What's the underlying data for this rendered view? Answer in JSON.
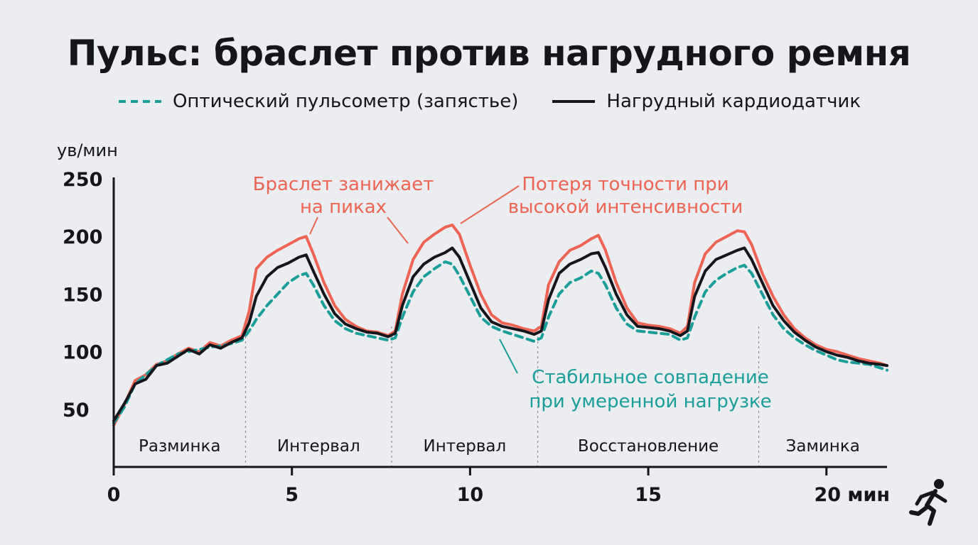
{
  "title": "Пульс: браслет против нагрудного ремня",
  "legend": [
    {
      "label": "Оптический пульсометр (запястье)",
      "style": "dashed",
      "color": "#1a9e9a"
    },
    {
      "label": "Нагрудный кардиодатчик",
      "style": "solid",
      "color": "#14161b"
    }
  ],
  "chart_data": {
    "type": "line",
    "ylabel": "ув/мин",
    "yticks": [
      "50",
      "100",
      "150",
      "200",
      "250"
    ],
    "xticks": [
      "0",
      "5",
      "10",
      "15",
      "20 мин"
    ],
    "xlim": [
      0,
      21.7
    ],
    "ylim": [
      0,
      250
    ],
    "grid": false,
    "legend_position": "top",
    "x": [
      0,
      0.3,
      0.6,
      0.9,
      1.2,
      1.5,
      1.8,
      2.1,
      2.4,
      2.7,
      3.0,
      3.3,
      3.6,
      3.8,
      4.0,
      4.3,
      4.6,
      4.9,
      5.2,
      5.4,
      5.6,
      5.9,
      6.2,
      6.5,
      6.8,
      7.1,
      7.4,
      7.7,
      7.9,
      8.1,
      8.4,
      8.7,
      9.0,
      9.3,
      9.5,
      9.7,
      10.0,
      10.3,
      10.6,
      10.9,
      11.2,
      11.5,
      11.8,
      12.0,
      12.2,
      12.5,
      12.8,
      13.1,
      13.4,
      13.6,
      13.8,
      14.1,
      14.4,
      14.7,
      15.0,
      15.3,
      15.6,
      15.9,
      16.1,
      16.3,
      16.6,
      16.9,
      17.2,
      17.5,
      17.7,
      17.9,
      18.2,
      18.5,
      18.8,
      19.1,
      19.4,
      19.7,
      20.0,
      20.3,
      20.6,
      20.9,
      21.2,
      21.5,
      21.7
    ],
    "series": [
      {
        "name": "Оптический пульсометр (запястье)",
        "color": "#1a9e9a",
        "dash": true,
        "values": [
          38,
          52,
          72,
          80,
          88,
          93,
          98,
          100,
          102,
          104,
          105,
          107,
          110,
          118,
          128,
          140,
          150,
          160,
          166,
          168,
          158,
          140,
          127,
          120,
          116,
          114,
          112,
          110,
          112,
          130,
          152,
          165,
          172,
          178,
          176,
          166,
          148,
          130,
          122,
          118,
          115,
          112,
          109,
          112,
          130,
          150,
          160,
          164,
          170,
          168,
          158,
          138,
          124,
          118,
          117,
          116,
          115,
          110,
          112,
          130,
          152,
          162,
          168,
          173,
          175,
          168,
          150,
          132,
          120,
          112,
          106,
          101,
          97,
          93,
          91,
          90,
          89,
          86,
          84
        ]
      },
      {
        "name": "Нагрудный кардиодатчик",
        "color": "#14161b",
        "dash": false,
        "values": [
          40,
          55,
          72,
          76,
          88,
          90,
          96,
          102,
          98,
          106,
          103,
          108,
          112,
          125,
          148,
          165,
          173,
          177,
          182,
          184,
          170,
          150,
          133,
          124,
          120,
          117,
          116,
          113,
          116,
          140,
          165,
          176,
          182,
          186,
          190,
          182,
          160,
          138,
          126,
          122,
          120,
          118,
          115,
          118,
          145,
          168,
          176,
          180,
          185,
          186,
          173,
          150,
          132,
          122,
          121,
          120,
          118,
          114,
          118,
          148,
          170,
          180,
          184,
          188,
          190,
          180,
          160,
          140,
          127,
          117,
          110,
          104,
          100,
          97,
          95,
          92,
          90,
          89,
          88
        ]
      },
      {
        "name": "",
        "color": "#ee6452",
        "dash": false,
        "values": [
          36,
          54,
          75,
          80,
          89,
          92,
          98,
          103,
          100,
          108,
          105,
          110,
          114,
          135,
          172,
          182,
          188,
          193,
          198,
          200,
          185,
          160,
          140,
          128,
          122,
          118,
          117,
          114,
          118,
          150,
          180,
          195,
          202,
          208,
          210,
          202,
          175,
          150,
          132,
          125,
          123,
          120,
          118,
          122,
          158,
          178,
          188,
          192,
          198,
          201,
          188,
          160,
          138,
          125,
          123,
          122,
          120,
          116,
          122,
          160,
          185,
          195,
          200,
          205,
          204,
          193,
          168,
          148,
          132,
          120,
          112,
          106,
          102,
          100,
          97,
          94,
          92,
          90,
          88
        ]
      }
    ],
    "phases": [
      {
        "label": "Разминка",
        "start": 0,
        "end": 3.7
      },
      {
        "label": "Интервал",
        "start": 3.7,
        "end": 7.8
      },
      {
        "label": "Интервал",
        "start": 7.8,
        "end": 11.9
      },
      {
        "label": "Восстановление",
        "start": 11.9,
        "end": 18.1
      },
      {
        "label": "Заминка",
        "start": 18.1,
        "end": 21.7
      }
    ],
    "annotations": [
      {
        "text": [
          "Браслет занижает",
          "на пиках"
        ],
        "color": "#ee6452"
      },
      {
        "text": [
          "Потеря точности при",
          "высокой интенсивности"
        ],
        "color": "#ee6452"
      },
      {
        "text": [
          "Стабильное совпадение",
          "при умеренной нагрузке"
        ],
        "color": "#1a9e9a"
      }
    ]
  },
  "icons": {
    "corner": "runner-icon"
  }
}
